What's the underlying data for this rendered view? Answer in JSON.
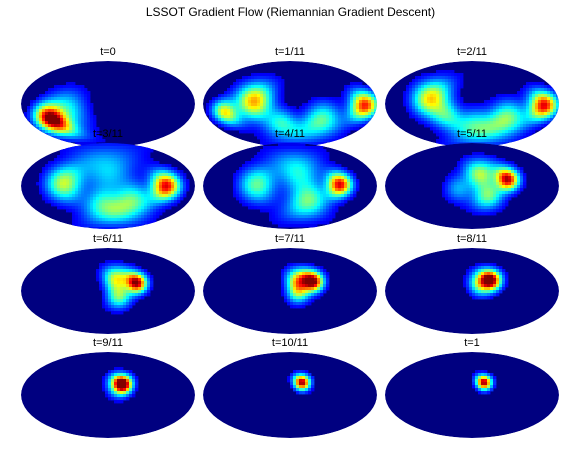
{
  "chart_data": {
    "type": "heatmap",
    "title": "LSSOT Gradient Flow (Riemannian Gradient Descent)",
    "projection": "mollweide",
    "colormap": "jet",
    "panels": [
      {
        "title": "t=0",
        "blobs": [
          {
            "lon": -2.2,
            "lat": -0.55,
            "w": 0.35,
            "a": 1.0
          },
          {
            "lon": -1.5,
            "lat": -0.2,
            "w": 0.5,
            "a": 0.35
          }
        ]
      },
      {
        "title": "t=1/11",
        "blobs": [
          {
            "lon": -1.3,
            "lat": 0.1,
            "w": 0.45,
            "a": 0.7
          },
          {
            "lon": -2.4,
            "lat": -0.3,
            "w": 0.3,
            "a": 0.6
          },
          {
            "lon": 2.7,
            "lat": -0.05,
            "w": 0.35,
            "a": 0.85
          },
          {
            "lon": 1.2,
            "lat": -0.6,
            "w": 0.45,
            "a": 0.45
          },
          {
            "lon": -0.3,
            "lat": -0.7,
            "w": 0.35,
            "a": 0.35
          }
        ]
      },
      {
        "title": "t=2/11",
        "blobs": [
          {
            "lon": -1.5,
            "lat": 0.2,
            "w": 0.45,
            "a": 0.65
          },
          {
            "lon": 2.6,
            "lat": -0.05,
            "w": 0.35,
            "a": 0.9
          },
          {
            "lon": 1.3,
            "lat": -0.55,
            "w": 0.45,
            "a": 0.5
          },
          {
            "lon": 0.1,
            "lat": -0.75,
            "w": 0.4,
            "a": 0.35
          },
          {
            "lon": -0.9,
            "lat": -0.45,
            "w": 0.35,
            "a": 0.3
          }
        ]
      },
      {
        "title": "t=3/11",
        "blobs": [
          {
            "lon": 2.1,
            "lat": 0.0,
            "w": 0.35,
            "a": 0.9
          },
          {
            "lon": -1.6,
            "lat": 0.1,
            "w": 0.45,
            "a": 0.55
          },
          {
            "lon": 0.9,
            "lat": -0.6,
            "w": 0.45,
            "a": 0.45
          },
          {
            "lon": -0.2,
            "lat": -0.7,
            "w": 0.4,
            "a": 0.35
          },
          {
            "lon": 0.0,
            "lat": 0.6,
            "w": 0.6,
            "a": 0.3
          }
        ]
      },
      {
        "title": "t=4/11",
        "blobs": [
          {
            "lon": 1.8,
            "lat": 0.05,
            "w": 0.3,
            "a": 0.9
          },
          {
            "lon": -1.2,
            "lat": 0.05,
            "w": 0.45,
            "a": 0.45
          },
          {
            "lon": 0.7,
            "lat": -0.55,
            "w": 0.45,
            "a": 0.45
          },
          {
            "lon": 0.3,
            "lat": 0.55,
            "w": 0.5,
            "a": 0.35
          }
        ]
      },
      {
        "title": "t=5/11",
        "blobs": [
          {
            "lon": 1.3,
            "lat": 0.25,
            "w": 0.28,
            "a": 0.95
          },
          {
            "lon": 0.3,
            "lat": 0.45,
            "w": 0.35,
            "a": 0.5
          },
          {
            "lon": 0.6,
            "lat": -0.35,
            "w": 0.35,
            "a": 0.45
          },
          {
            "lon": -0.5,
            "lat": -0.1,
            "w": 0.35,
            "a": 0.25
          }
        ]
      },
      {
        "title": "t=6/11",
        "blobs": [
          {
            "lon": 1.05,
            "lat": 0.3,
            "w": 0.25,
            "a": 1.0
          },
          {
            "lon": 0.3,
            "lat": 0.45,
            "w": 0.3,
            "a": 0.55
          },
          {
            "lon": 0.4,
            "lat": -0.2,
            "w": 0.3,
            "a": 0.45
          }
        ]
      },
      {
        "title": "t=7/11",
        "blobs": [
          {
            "lon": 0.85,
            "lat": 0.35,
            "w": 0.25,
            "a": 1.0
          },
          {
            "lon": 0.3,
            "lat": 0.4,
            "w": 0.28,
            "a": 0.55
          },
          {
            "lon": 0.3,
            "lat": -0.05,
            "w": 0.28,
            "a": 0.45
          }
        ]
      },
      {
        "title": "t=8/11",
        "blobs": [
          {
            "lon": 0.7,
            "lat": 0.4,
            "w": 0.25,
            "a": 1.0
          },
          {
            "lon": 0.3,
            "lat": 0.25,
            "w": 0.28,
            "a": 0.5
          }
        ]
      },
      {
        "title": "t=9/11",
        "blobs": [
          {
            "lon": 0.55,
            "lat": 0.4,
            "w": 0.22,
            "a": 1.0
          },
          {
            "lon": 0.35,
            "lat": 0.3,
            "w": 0.28,
            "a": 0.35
          }
        ]
      },
      {
        "title": "t=10/11",
        "blobs": [
          {
            "lon": 0.45,
            "lat": 0.45,
            "w": 0.19,
            "a": 1.0
          }
        ]
      },
      {
        "title": "t=1",
        "blobs": [
          {
            "lon": 0.45,
            "lat": 0.45,
            "w": 0.18,
            "a": 1.0
          }
        ]
      }
    ]
  }
}
